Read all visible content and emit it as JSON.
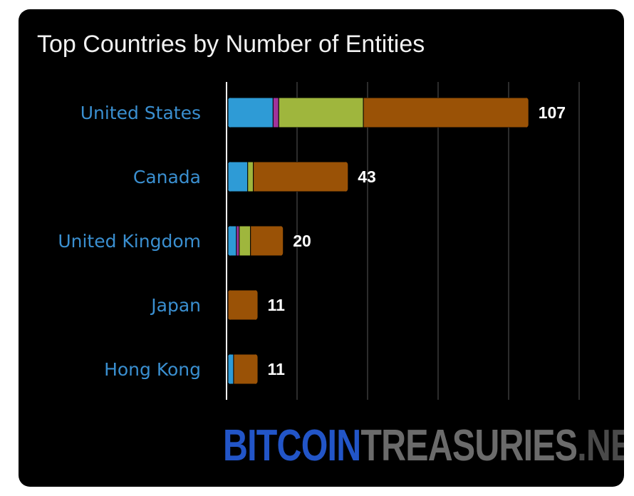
{
  "chart_data": {
    "type": "bar",
    "orientation": "horizontal",
    "stacked": true,
    "title": "Top Countries by Number of Entities",
    "categories": [
      "United States",
      "Canada",
      "United Kingdom",
      "Japan",
      "Hong Kong"
    ],
    "totals": [
      107,
      43,
      20,
      11,
      11
    ],
    "series": [
      {
        "color": "#2e9bd6",
        "values": [
          16,
          7,
          3,
          0,
          2
        ]
      },
      {
        "color": "#a2339a",
        "values": [
          2,
          0,
          1,
          0,
          0
        ]
      },
      {
        "color": "#9fb63d",
        "values": [
          30,
          2,
          4,
          0,
          0
        ]
      },
      {
        "color": "#9a5206",
        "values": [
          59,
          34,
          12,
          11,
          9
        ]
      }
    ],
    "xlim": [
      0,
      125
    ],
    "grid": true,
    "legend": "none"
  },
  "colors": {
    "background": "#000000",
    "gridline": "#3a3a3a",
    "axis": "#ffffff",
    "category_text": "#3a8fd0",
    "value_text": "#ffffff"
  },
  "watermark": {
    "part1": "BITCOIN",
    "part2": "TREASURIES",
    "part3": ".NET"
  }
}
